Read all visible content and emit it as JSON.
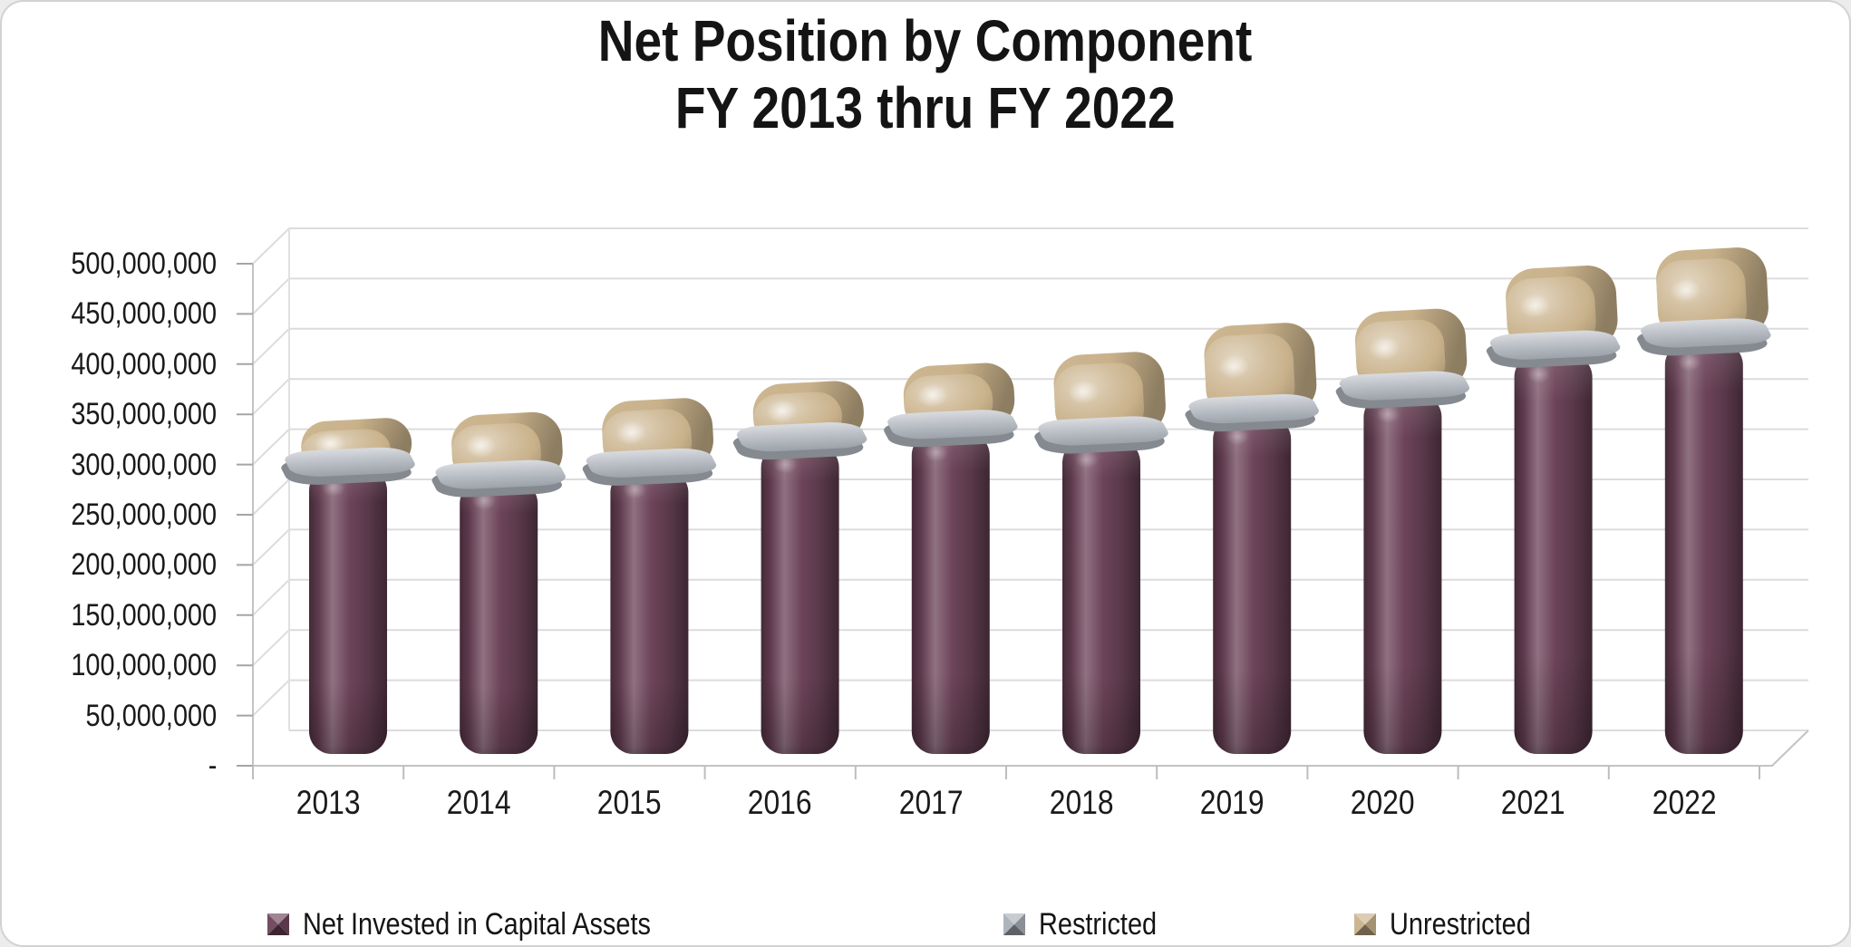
{
  "title": {
    "line1": "Net Position by Component",
    "line2": "FY 2013 thru FY 2022"
  },
  "chart_data": {
    "type": "bar",
    "subtype": "3d-rounded-stacked-columns",
    "title": "Net Position by Component FY 2013 thru FY 2022",
    "categories": [
      "2013",
      "2014",
      "2015",
      "2016",
      "2017",
      "2018",
      "2019",
      "2020",
      "2021",
      "2022"
    ],
    "series": [
      {
        "name": "Net Invested in Capital Assets",
        "color": "#6d4459",
        "values": [
          285000000,
          272000000,
          283000000,
          308000000,
          320000000,
          313000000,
          336000000,
          358000000,
          398000000,
          410000000
        ]
      },
      {
        "name": "Restricted",
        "color": "#aab0b8",
        "values": [
          8000000,
          9000000,
          10000000,
          12000000,
          13000000,
          14000000,
          12000000,
          14000000,
          15000000,
          15000000
        ]
      },
      {
        "name": "Unrestricted",
        "color": "#c9b28b",
        "values": [
          40000000,
          58000000,
          60000000,
          50000000,
          55000000,
          72000000,
          80000000,
          70000000,
          72000000,
          78000000
        ]
      }
    ],
    "xlabel": "",
    "ylabel": "",
    "y_axis": {
      "min": 0,
      "max": 500000000,
      "step": 50000000,
      "tick_labels": [
        "-",
        "50,000,000",
        "100,000,000",
        "150,000,000",
        "200,000,000",
        "250,000,000",
        "300,000,000",
        "350,000,000",
        "400,000,000",
        "450,000,000",
        "500,000,000"
      ]
    },
    "legend_position": "bottom",
    "gridlines": true
  }
}
